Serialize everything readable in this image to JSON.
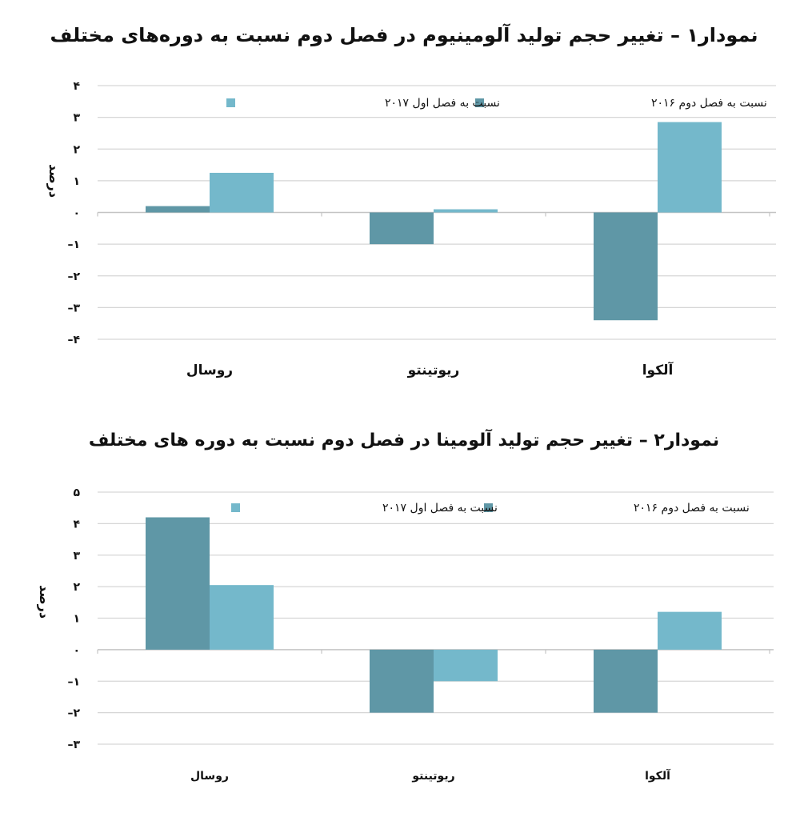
{
  "chart_data": [
    {
      "type": "bar",
      "title": "نمودار۱ – تغییر حجم تولید آلومینیوم در فصل دوم نسبت به دوره‌های مختلف",
      "categories": [
        "روسال",
        "ریوتینتو",
        "آلکوا"
      ],
      "series": [
        {
          "name": "نسبت به فصل دوم ۲۰۱۶",
          "color": "#5f97a6",
          "values": [
            0.2,
            -1.0,
            -3.4
          ]
        },
        {
          "name": "نسبت به فصل اول ۲۰۱۷",
          "color": "#74b8cb",
          "values": [
            1.25,
            0.1,
            2.85
          ]
        }
      ],
      "ylabel": "درصد",
      "xlabel": "",
      "ylim": [
        -4,
        4
      ],
      "yticks": [
        4,
        3,
        2,
        1,
        0,
        -1,
        -2,
        -3,
        -4
      ],
      "ytick_labels": [
        "۴",
        "۳",
        "۲",
        "۱",
        "۰",
        "–۱",
        "–۲",
        "–۳",
        "–۴"
      ],
      "grid": true,
      "legend_position": "top"
    },
    {
      "type": "bar",
      "title": "نمودار۲ – تغییر حجم تولید آلومینا در فصل دوم نسبت به دوره های مختلف",
      "categories": [
        "روسال",
        "ریوتینتو",
        "آلکوا"
      ],
      "series": [
        {
          "name": "نسبت به فصل دوم ۲۰۱۶",
          "color": "#5f97a6",
          "values": [
            4.2,
            -2.0,
            -2.0
          ]
        },
        {
          "name": "نسبت به فصل اول ۲۰۱۷",
          "color": "#74b8cb",
          "values": [
            2.05,
            -1.0,
            1.2
          ]
        }
      ],
      "ylabel": "درصد",
      "xlabel": "",
      "ylim": [
        -3,
        5
      ],
      "yticks": [
        5,
        4,
        3,
        2,
        1,
        0,
        -1,
        -2,
        -3
      ],
      "ytick_labels": [
        "۵",
        "۴",
        "۳",
        "۲",
        "۱",
        "۰",
        "–۱",
        "–۲",
        "–۳"
      ],
      "grid": true,
      "legend_position": "top"
    }
  ]
}
